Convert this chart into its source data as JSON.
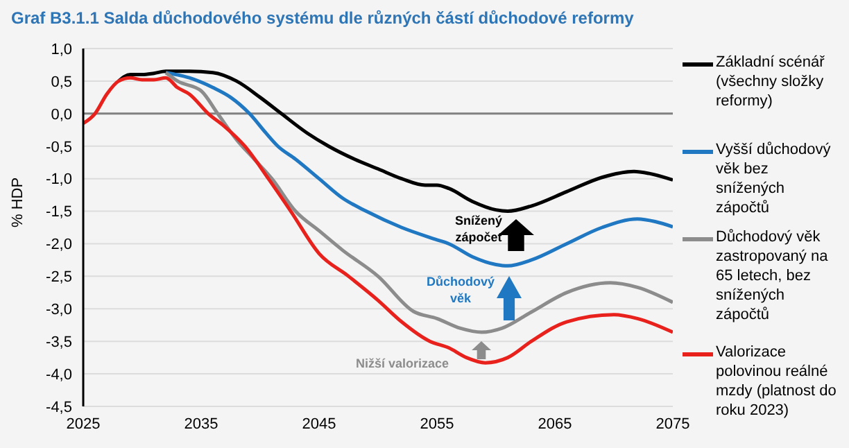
{
  "chart_data": {
    "type": "line",
    "title": "Graf B3.1.1 Salda důchodového systému dle různých částí důchodové reformy",
    "ylabel": "% HDP",
    "xlim": [
      2025,
      2075
    ],
    "xticks": [
      2025,
      2035,
      2045,
      2055,
      2065,
      2075
    ],
    "ylim": [
      -4.5,
      1.0
    ],
    "yticks": [
      {
        "value": 1.0,
        "label": "1,0"
      },
      {
        "value": 0.5,
        "label": "0,5"
      },
      {
        "value": 0,
        "label": "0,0"
      },
      {
        "value": -0.5,
        "label": "-0,5"
      },
      {
        "value": -1.0,
        "label": "-1,0"
      },
      {
        "value": -1.5,
        "label": "-1,5"
      },
      {
        "value": -2.0,
        "label": "-2,0"
      },
      {
        "value": -2.5,
        "label": "-2,5"
      },
      {
        "value": -3.0,
        "label": "-3,0"
      },
      {
        "value": -3.5,
        "label": "-3,5"
      },
      {
        "value": -4.0,
        "label": "-4,0"
      },
      {
        "value": -4.5,
        "label": "-4,5"
      }
    ],
    "grid": "y",
    "legend": "right",
    "marker": "none",
    "line_style": "solid",
    "ref_lines": [
      {
        "axis": "y",
        "value": 0,
        "color": "#808080"
      }
    ],
    "annotations": [
      "Snížený zápočet",
      "Důchodový věk",
      "Nižší valorizace"
    ],
    "series": [
      {
        "name": "Základní scénář (všechny složky reformy)",
        "color": "#000000",
        "x": [
          2028,
          2029,
          2030,
          2031,
          2032,
          2034,
          2036,
          2038,
          2040,
          2041.8,
          2044,
          2045.8,
          2048,
          2050,
          2052,
          2054,
          2055,
          2056,
          2058,
          2060,
          2061,
          2063,
          2066,
          2069,
          2071.7,
          2073,
          2075
        ],
        "values": [
          0.5,
          0.6,
          0.6,
          0.62,
          0.65,
          0.65,
          0.63,
          0.5,
          0.25,
          0.0,
          -0.3,
          -0.5,
          -0.7,
          -0.85,
          -1.0,
          -1.1,
          -1.1,
          -1.15,
          -1.35,
          -1.48,
          -1.5,
          -1.42,
          -1.2,
          -0.98,
          -0.89,
          -0.92,
          -1.02
        ]
      },
      {
        "name": "Vyšší důchodový věk bez snížených zápočtů",
        "color": "#1f78c1",
        "x": [
          2032,
          2034,
          2036,
          2037.5,
          2039.1,
          2040.5,
          2041.5,
          2043,
          2045,
          2047,
          2049,
          2052,
          2055,
          2056,
          2058,
          2060,
          2061,
          2063,
          2066,
          2069,
          2072,
          2073.5,
          2075
        ],
        "values": [
          0.63,
          0.55,
          0.4,
          0.25,
          0.0,
          -0.3,
          -0.5,
          -0.7,
          -1.0,
          -1.3,
          -1.5,
          -1.75,
          -1.94,
          -2.0,
          -2.2,
          -2.32,
          -2.34,
          -2.25,
          -2.0,
          -1.75,
          -1.62,
          -1.66,
          -1.74
        ]
      },
      {
        "name": "Důchodový věk zastropovaný na 65 letech, bez snížených zápočtů",
        "color": "#8c8c8c",
        "x": [
          2032,
          2033,
          2035,
          2036.4,
          2038,
          2039.5,
          2041,
          2043,
          2045,
          2047,
          2050,
          2053,
          2055,
          2057,
          2058.8,
          2060.5,
          2063,
          2066,
          2069.7,
          2072,
          2075
        ],
        "values": [
          0.63,
          0.5,
          0.35,
          0.0,
          -0.4,
          -0.7,
          -1.0,
          -1.5,
          -1.8,
          -2.1,
          -2.5,
          -3.04,
          -3.15,
          -3.3,
          -3.36,
          -3.3,
          -3.05,
          -2.75,
          -2.6,
          -2.67,
          -2.9
        ]
      },
      {
        "name": "Valorizace polovinou reálné mzdy (platnost do roku 2023)",
        "color": "#e8211c",
        "x": [
          2025,
          2026,
          2027,
          2028,
          2029,
          2030,
          2031,
          2032,
          2033,
          2034,
          2035.6,
          2037,
          2038.7,
          2040.7,
          2042.6,
          2045,
          2047.5,
          2050,
          2052,
          2054.4,
          2056,
          2057.5,
          2059.1,
          2061,
          2063,
          2066,
          2070,
          2072,
          2075
        ],
        "values": [
          -0.15,
          0.0,
          0.3,
          0.5,
          0.55,
          0.52,
          0.52,
          0.55,
          0.4,
          0.3,
          0.0,
          -0.2,
          -0.5,
          -1.0,
          -1.5,
          -2.15,
          -2.5,
          -2.87,
          -3.2,
          -3.5,
          -3.6,
          -3.75,
          -3.83,
          -3.75,
          -3.5,
          -3.2,
          -3.09,
          -3.15,
          -3.36
        ]
      }
    ]
  }
}
